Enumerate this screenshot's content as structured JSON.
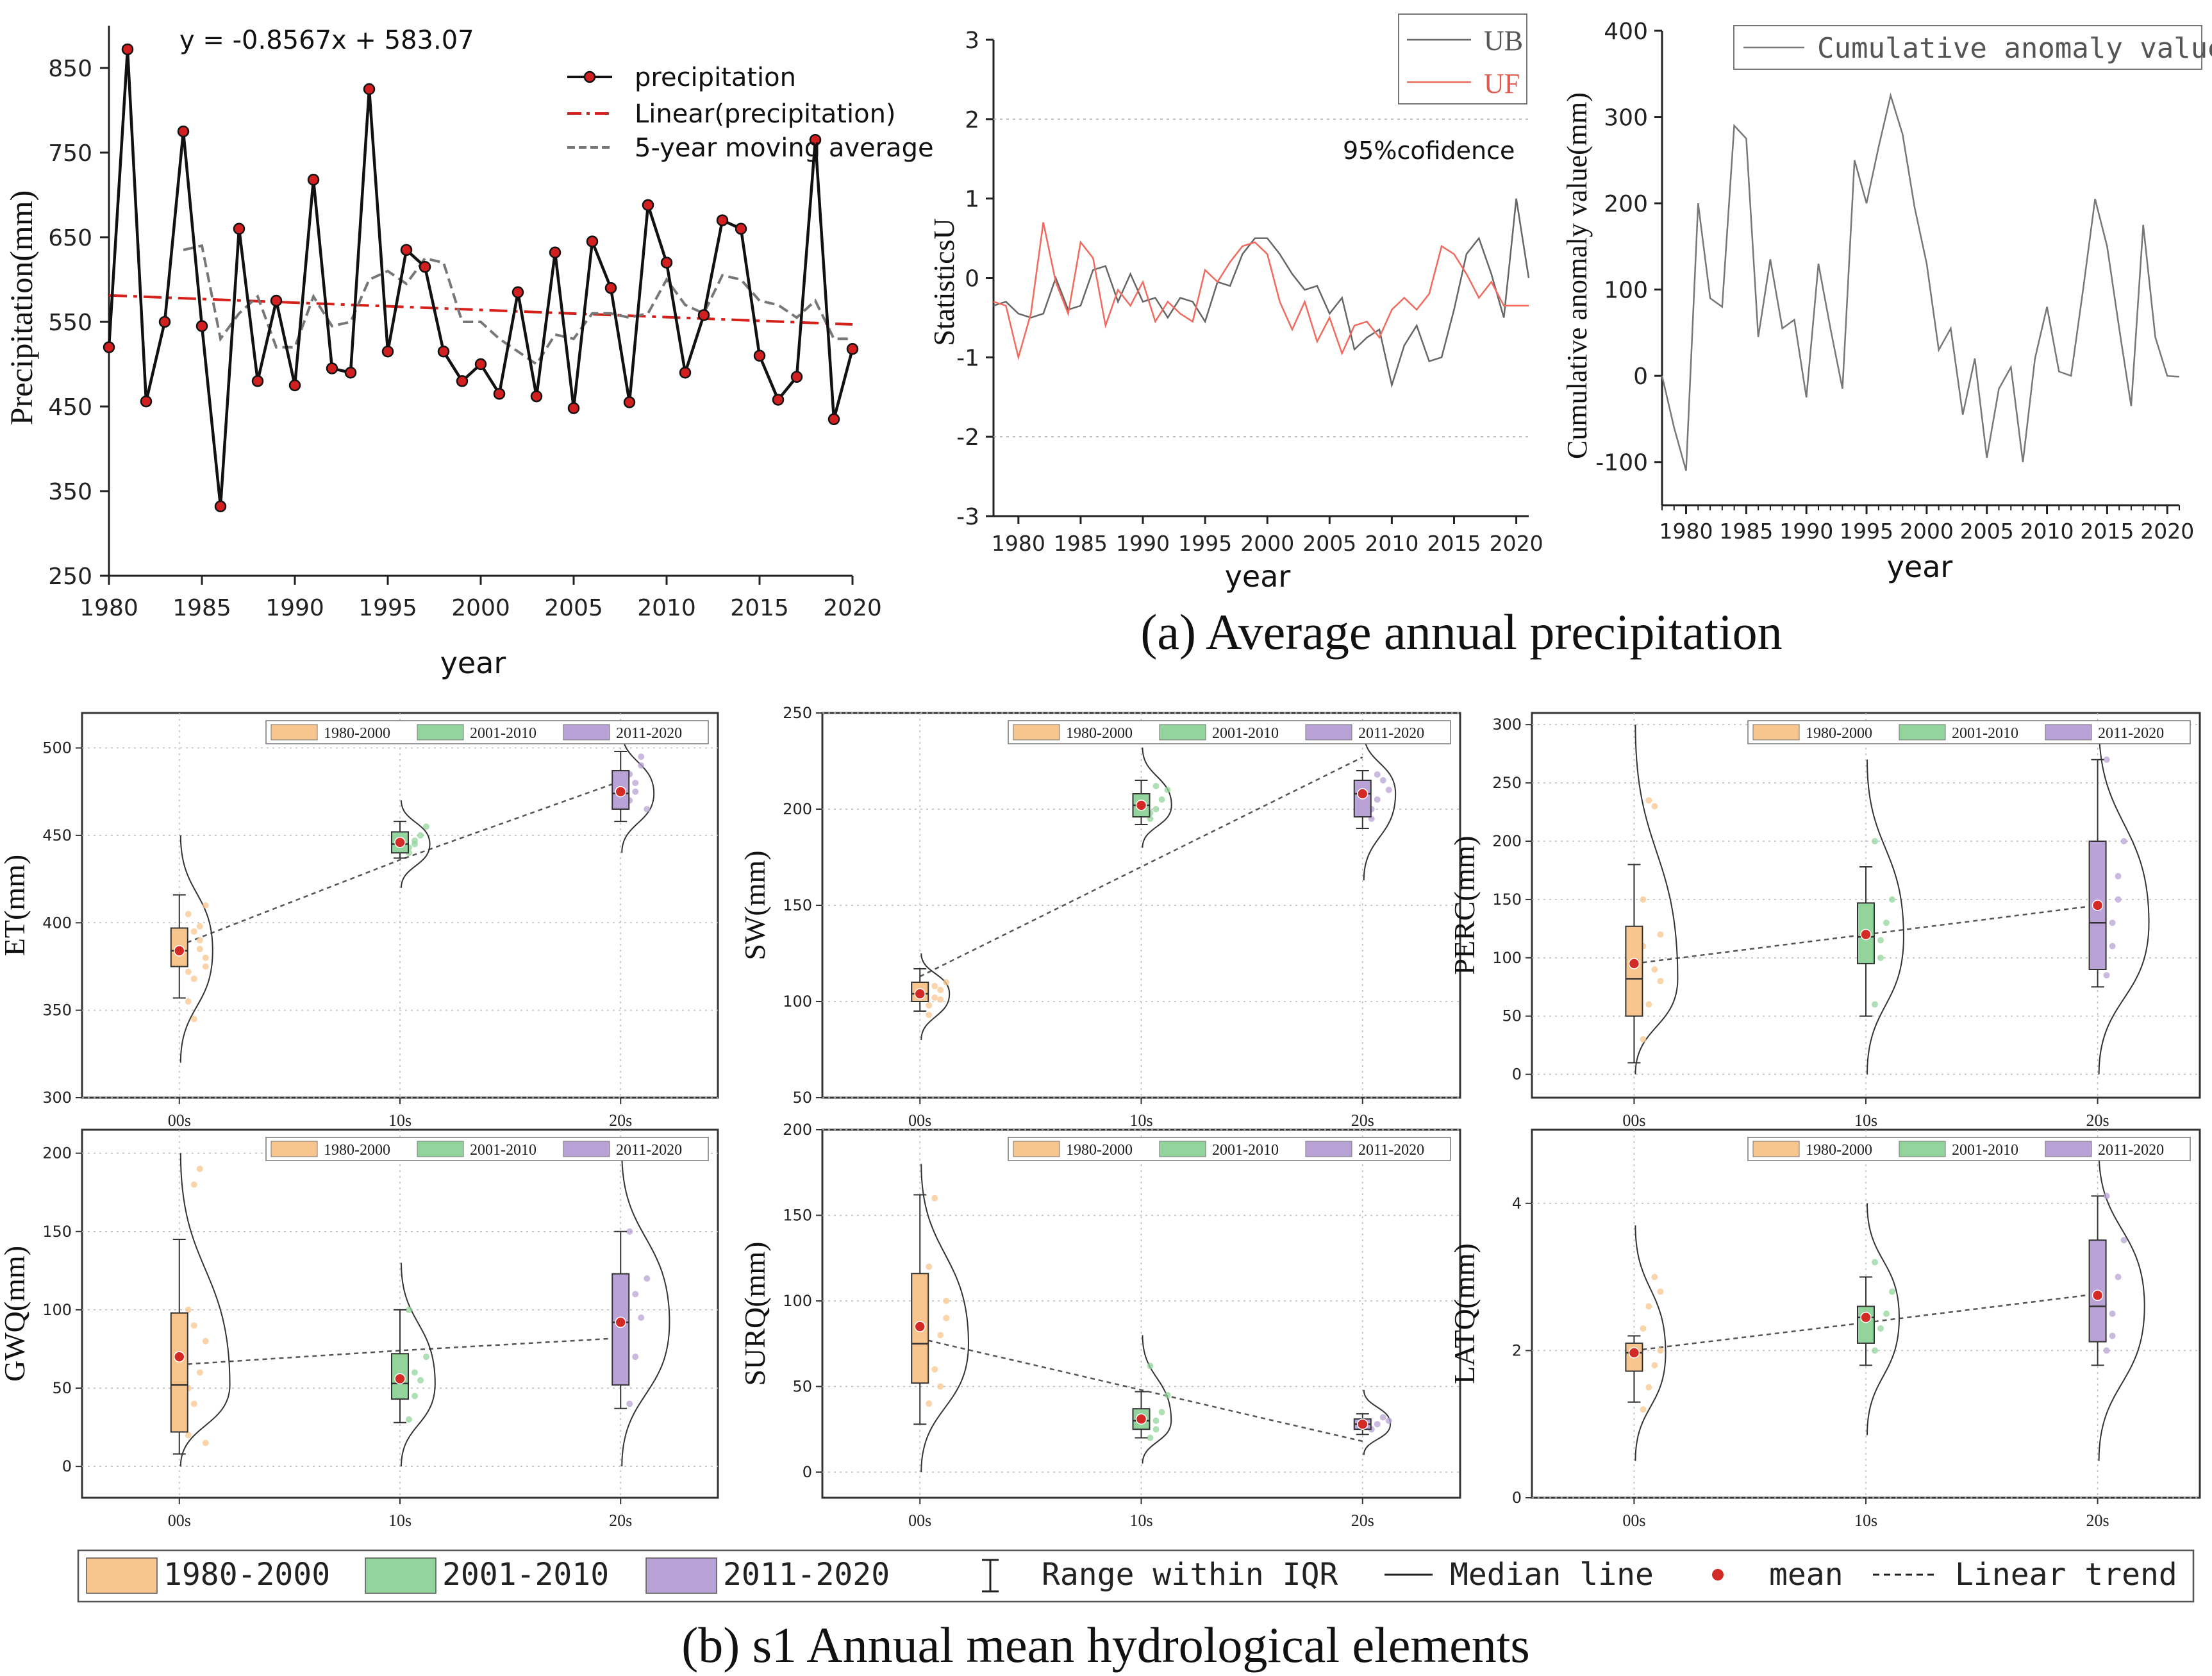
{
  "captions": {
    "a": "(a)  Average annual precipitation",
    "b": "(b) s1 Annual mean hydrological elements"
  },
  "colors": {
    "p1": "#f8c58f",
    "p2": "#93d49c",
    "p3": "#b9a3d6",
    "red": "#d42a26",
    "trend": "#d6201a",
    "ub": "#666666",
    "uf": "#f06a5e"
  },
  "chart_data": [
    {
      "id": "precip",
      "type": "line",
      "title": "",
      "equation": "y = -0.8567x + 583.07",
      "xlabel": "year",
      "ylabel": "Precipitation(mm)",
      "xlim": [
        1980,
        2020
      ],
      "ylim": [
        250,
        900
      ],
      "xticks": [
        1980,
        1985,
        1990,
        1995,
        2000,
        2005,
        2010,
        2015,
        2020
      ],
      "yticks": [
        250,
        350,
        450,
        550,
        650,
        750,
        850
      ],
      "legend": [
        "precipitation",
        "Linear(precipitation)",
        "5-year moving average"
      ],
      "x": [
        1980,
        1981,
        1982,
        1983,
        1984,
        1985,
        1986,
        1987,
        1988,
        1989,
        1990,
        1991,
        1992,
        1993,
        1994,
        1995,
        1996,
        1997,
        1998,
        1999,
        2000,
        2001,
        2002,
        2003,
        2004,
        2005,
        2006,
        2007,
        2008,
        2009,
        2010,
        2011,
        2012,
        2013,
        2014,
        2015,
        2016,
        2017,
        2018,
        2019,
        2020
      ],
      "series": [
        {
          "name": "precipitation",
          "values": [
            520,
            872,
            456,
            550,
            775,
            545,
            332,
            660,
            480,
            575,
            475,
            718,
            495,
            490,
            825,
            515,
            635,
            615,
            515,
            480,
            500,
            465,
            585,
            462,
            632,
            448,
            645,
            590,
            455,
            688,
            620,
            490,
            558,
            670,
            660,
            510,
            458,
            485,
            765,
            435,
            518
          ]
        },
        {
          "name": "5-year moving average",
          "x": [
            1984,
            1985,
            1986,
            1987,
            1988,
            1989,
            1990,
            1991,
            1992,
            1993,
            1994,
            1995,
            1996,
            1997,
            1998,
            1999,
            2000,
            2001,
            2002,
            2003,
            2004,
            2005,
            2006,
            2007,
            2008,
            2009,
            2010,
            2011,
            2012,
            2013,
            2014,
            2015,
            2016,
            2017,
            2018,
            2019,
            2020
          ],
          "values": [
            635,
            640,
            530,
            560,
            580,
            520,
            520,
            580,
            545,
            550,
            600,
            610,
            595,
            625,
            620,
            550,
            550,
            530,
            515,
            500,
            535,
            530,
            560,
            560,
            555,
            560,
            600,
            570,
            560,
            605,
            600,
            575,
            570,
            555,
            575,
            530,
            530
          ]
        },
        {
          "name": "Linear(precipitation)",
          "x": [
            1980,
            2020
          ],
          "values": [
            581.3,
            547.0
          ]
        }
      ]
    },
    {
      "id": "mk",
      "type": "line",
      "ylabel": "StatisticsU",
      "xlabel": "year",
      "xlim": [
        1978,
        2021
      ],
      "ylim": [
        -3,
        3
      ],
      "xticks": [
        1980,
        1985,
        1990,
        1995,
        2000,
        2005,
        2010,
        2015,
        2020
      ],
      "yticks": [
        3,
        2,
        1,
        0,
        -1,
        -2,
        -3
      ],
      "confidence_label": "95%cofidence",
      "confidence_lines": [
        2,
        -2
      ],
      "legend": [
        "UB",
        "UF"
      ],
      "x": [
        1978,
        1979,
        1980,
        1981,
        1982,
        1983,
        1984,
        1985,
        1986,
        1987,
        1988,
        1989,
        1990,
        1991,
        1992,
        1993,
        1994,
        1995,
        1996,
        1997,
        1998,
        1999,
        2000,
        2001,
        2002,
        2003,
        2004,
        2005,
        2006,
        2007,
        2008,
        2009,
        2010,
        2011,
        2012,
        2013,
        2014,
        2015,
        2016,
        2017,
        2018,
        2019,
        2020,
        2021
      ],
      "series": [
        {
          "name": "UB",
          "values": [
            -0.35,
            -0.3,
            -0.45,
            -0.5,
            -0.45,
            0.0,
            -0.4,
            -0.35,
            0.1,
            0.15,
            -0.3,
            0.05,
            -0.3,
            -0.25,
            -0.5,
            -0.25,
            -0.3,
            -0.55,
            -0.05,
            -0.1,
            0.3,
            0.5,
            0.5,
            0.3,
            0.05,
            -0.15,
            -0.1,
            -0.45,
            -0.25,
            -0.9,
            -0.75,
            -0.65,
            -1.35,
            -0.85,
            -0.6,
            -1.05,
            -1.0,
            -0.4,
            0.3,
            0.5,
            0.05,
            -0.5,
            1.0,
            0.0
          ]
        },
        {
          "name": "UF",
          "values": [
            -0.3,
            -0.35,
            -1.0,
            -0.45,
            0.7,
            -0.05,
            -0.45,
            0.45,
            0.25,
            -0.6,
            -0.15,
            -0.35,
            -0.05,
            -0.55,
            -0.3,
            -0.45,
            -0.55,
            0.1,
            -0.05,
            0.2,
            0.4,
            0.45,
            0.3,
            -0.3,
            -0.65,
            -0.3,
            -0.8,
            -0.5,
            -0.95,
            -0.6,
            -0.55,
            -0.75,
            -0.4,
            -0.25,
            -0.4,
            -0.2,
            0.4,
            0.3,
            0.05,
            -0.25,
            -0.05,
            -0.35,
            -0.35,
            -0.35
          ]
        }
      ]
    },
    {
      "id": "cum",
      "type": "line",
      "ylabel": "Cumulative anomaly value(mm)",
      "xlabel": "year",
      "xlim": [
        1978,
        2021
      ],
      "ylim": [
        -150,
        400
      ],
      "xticks": [
        1980,
        1985,
        1990,
        1995,
        2000,
        2005,
        2010,
        2015,
        2020
      ],
      "yticks": [
        400,
        300,
        200,
        100,
        0,
        -100
      ],
      "legend": [
        "Cumulative anomaly value"
      ],
      "x": [
        1978,
        1979,
        1980,
        1981,
        1982,
        1983,
        1984,
        1985,
        1986,
        1987,
        1988,
        1989,
        1990,
        1991,
        1992,
        1993,
        1994,
        1995,
        1996,
        1997,
        1998,
        1999,
        2000,
        2001,
        2002,
        2003,
        2004,
        2005,
        2006,
        2007,
        2008,
        2009,
        2010,
        2011,
        2012,
        2013,
        2014,
        2015,
        2016,
        2017,
        2018,
        2019,
        2020,
        2021
      ],
      "series": [
        {
          "name": "Cumulative anomaly value",
          "values": [
            0,
            -60,
            -110,
            200,
            90,
            80,
            290,
            275,
            45,
            135,
            55,
            65,
            -25,
            130,
            55,
            -15,
            250,
            200,
            265,
            325,
            280,
            195,
            130,
            30,
            55,
            -45,
            20,
            -95,
            -15,
            10,
            -100,
            20,
            80,
            5,
            0,
            100,
            205,
            150,
            55,
            -35,
            175,
            45,
            0,
            -1
          ]
        }
      ]
    },
    {
      "id": "ET",
      "type": "box",
      "ylabel": "ET(mm)",
      "ylim": [
        300,
        520
      ],
      "yticks": [
        300,
        350,
        400,
        450,
        500
      ],
      "categories": [
        "00s",
        "10s",
        "20s"
      ],
      "legend": [
        "1980-2000",
        "2001-2010",
        "2011-2020"
      ],
      "boxes": [
        {
          "whisker_low": 357,
          "q1": 375,
          "median": 384,
          "q3": 397,
          "whisker_high": 416,
          "mean": 384,
          "curve_low": 320,
          "curve_high": 450,
          "points": [
            405,
            395,
            385,
            380,
            372,
            368,
            398,
            410,
            355,
            345,
            390,
            375
          ]
        },
        {
          "whisker_low": 437,
          "q1": 440,
          "median": 445,
          "q3": 452,
          "whisker_high": 458,
          "mean": 446,
          "curve_low": 420,
          "curve_high": 470,
          "points": [
            440,
            445,
            450,
            455,
            443,
            447
          ]
        },
        {
          "whisker_low": 458,
          "q1": 465,
          "median": 474,
          "q3": 487,
          "whisker_high": 498,
          "mean": 475,
          "curve_low": 440,
          "curve_high": 510,
          "points": [
            470,
            480,
            490,
            465,
            485,
            475,
            495
          ]
        }
      ],
      "trend": [
        387,
        436,
        481
      ]
    },
    {
      "id": "SW",
      "type": "box",
      "ylabel": "SW(mm)",
      "ylim": [
        50,
        250
      ],
      "yticks": [
        50,
        100,
        150,
        200,
        250
      ],
      "categories": [
        "00s",
        "10s",
        "20s"
      ],
      "legend": [
        "1980-2000",
        "2001-2010",
        "2011-2020"
      ],
      "boxes": [
        {
          "whisker_low": 95,
          "q1": 100,
          "median": 104,
          "q3": 110,
          "whisker_high": 117,
          "mean": 104,
          "curve_low": 80,
          "curve_high": 125,
          "points": [
            98,
            102,
            106,
            110,
            93,
            108,
            101
          ]
        },
        {
          "whisker_low": 192,
          "q1": 196,
          "median": 202,
          "q3": 208,
          "whisker_high": 215,
          "mean": 202,
          "curve_low": 180,
          "curve_high": 232,
          "points": [
            195,
            200,
            205,
            210,
            198,
            212
          ]
        },
        {
          "whisker_low": 190,
          "q1": 196,
          "median": 208,
          "q3": 215,
          "whisker_high": 220,
          "mean": 208,
          "curve_low": 163,
          "curve_high": 240,
          "points": [
            195,
            205,
            215,
            210,
            200,
            218
          ]
        }
      ],
      "trend": [
        113,
        170,
        227
      ]
    },
    {
      "id": "PERC",
      "type": "box",
      "ylabel": "PERC(mm)",
      "ylim": [
        -20,
        310
      ],
      "yticks": [
        0,
        50,
        100,
        150,
        200,
        250,
        300
      ],
      "categories": [
        "00s",
        "10s",
        "20s"
      ],
      "legend": [
        "1980-2000",
        "2001-2010",
        "2011-2020"
      ],
      "boxes": [
        {
          "whisker_low": 10,
          "q1": 50,
          "median": 82,
          "q3": 127,
          "whisker_high": 180,
          "mean": 95,
          "curve_low": 0,
          "curve_high": 300,
          "points": [
            30,
            60,
            90,
            120,
            150,
            235,
            230,
            80,
            110
          ]
        },
        {
          "whisker_low": 50,
          "q1": 95,
          "median": 118,
          "q3": 147,
          "whisker_high": 178,
          "mean": 120,
          "curve_low": 0,
          "curve_high": 270,
          "points": [
            60,
            100,
            130,
            150,
            200,
            115
          ]
        },
        {
          "whisker_low": 75,
          "q1": 90,
          "median": 130,
          "q3": 200,
          "whisker_high": 270,
          "mean": 145,
          "curve_low": 0,
          "curve_high": 300,
          "points": [
            85,
            130,
            170,
            200,
            270,
            110,
            150
          ]
        }
      ],
      "trend": [
        95,
        120,
        145
      ]
    },
    {
      "id": "GWQ",
      "type": "box",
      "ylabel": "GWQ(mm)",
      "ylim": [
        -20,
        215
      ],
      "yticks": [
        0,
        50,
        100,
        150,
        200
      ],
      "categories": [
        "00s",
        "10s",
        "20s"
      ],
      "legend": [
        "1980-2000",
        "2001-2010",
        "2011-2020"
      ],
      "boxes": [
        {
          "whisker_low": 8,
          "q1": 22,
          "median": 52,
          "q3": 98,
          "whisker_high": 145,
          "mean": 70,
          "curve_low": 0,
          "curve_high": 200,
          "points": [
            20,
            40,
            60,
            80,
            100,
            180,
            190,
            15,
            50,
            90
          ]
        },
        {
          "whisker_low": 28,
          "q1": 43,
          "median": 53,
          "q3": 72,
          "whisker_high": 100,
          "mean": 56,
          "curve_low": 0,
          "curve_high": 130,
          "points": [
            30,
            45,
            55,
            70,
            100,
            60
          ]
        },
        {
          "whisker_low": 37,
          "q1": 52,
          "median": 92,
          "q3": 123,
          "whisker_high": 150,
          "mean": 92,
          "curve_low": 0,
          "curve_high": 200,
          "points": [
            40,
            70,
            95,
            120,
            150,
            110
          ]
        }
      ],
      "trend": [
        65,
        74,
        82
      ]
    },
    {
      "id": "SURQ",
      "type": "box",
      "ylabel": "SURQ(mm)",
      "ylim": [
        -15,
        200
      ],
      "yticks": [
        0,
        50,
        100,
        150,
        200
      ],
      "categories": [
        "00s",
        "10s",
        "20s"
      ],
      "legend": [
        "1980-2000",
        "2001-2010",
        "2011-2020"
      ],
      "boxes": [
        {
          "whisker_low": 28,
          "q1": 52,
          "median": 75,
          "q3": 116,
          "whisker_high": 162,
          "mean": 85,
          "curve_low": 0,
          "curve_high": 180,
          "points": [
            40,
            60,
            80,
            100,
            120,
            160,
            50,
            90
          ]
        },
        {
          "whisker_low": 20,
          "q1": 25,
          "median": 30,
          "q3": 37,
          "whisker_high": 47,
          "mean": 31,
          "curve_low": 5,
          "curve_high": 80,
          "points": [
            20,
            25,
            35,
            45,
            62,
            30
          ]
        },
        {
          "whisker_low": 22,
          "q1": 25,
          "median": 28,
          "q3": 31,
          "whisker_high": 34,
          "mean": 28,
          "curve_low": 10,
          "curve_high": 48,
          "points": [
            25,
            28,
            32,
            30
          ]
        }
      ],
      "trend": [
        78,
        48,
        18
      ]
    },
    {
      "id": "LATQ",
      "type": "box",
      "ylabel": "LATQ(mm)",
      "ylim": [
        0,
        5
      ],
      "yticks": [
        0,
        2,
        4
      ],
      "categories": [
        "00s",
        "10s",
        "20s"
      ],
      "legend": [
        "1980-2000",
        "2001-2010",
        "2011-2020"
      ],
      "boxes": [
        {
          "whisker_low": 1.3,
          "q1": 1.72,
          "median": 1.97,
          "q3": 2.1,
          "whisker_high": 2.2,
          "mean": 1.97,
          "curve_low": 0.5,
          "curve_high": 3.7,
          "points": [
            1.2,
            1.5,
            1.8,
            2.0,
            2.3,
            2.6,
            3.0,
            2.8
          ]
        },
        {
          "whisker_low": 1.8,
          "q1": 2.1,
          "median": 2.45,
          "q3": 2.6,
          "whisker_high": 3.0,
          "mean": 2.45,
          "curve_low": 0.85,
          "curve_high": 4.0,
          "points": [
            2.0,
            2.3,
            2.5,
            2.8,
            3.2
          ]
        },
        {
          "whisker_low": 1.8,
          "q1": 2.12,
          "median": 2.6,
          "q3": 3.5,
          "whisker_high": 4.1,
          "mean": 2.75,
          "curve_low": 0.5,
          "curve_high": 4.7,
          "points": [
            2.0,
            2.5,
            3.0,
            3.5,
            4.1,
            2.2
          ]
        }
      ],
      "trend": [
        2.0,
        2.38,
        2.77
      ]
    }
  ],
  "bottom_legend": {
    "p1": "1980-2000",
    "p2": "2001-2010",
    "p3": "2011-2020",
    "iqr": "Range within IQR",
    "median": "Median line",
    "mean": "mean",
    "trend": "Linear trend"
  }
}
